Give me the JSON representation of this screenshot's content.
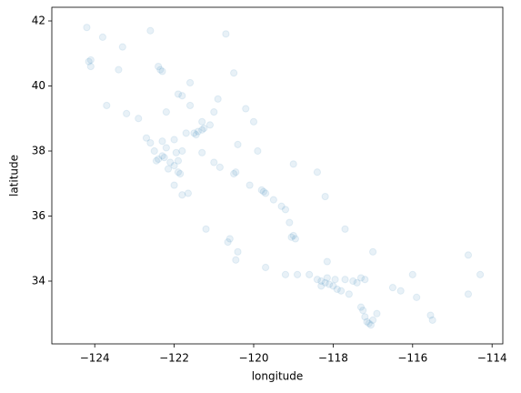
{
  "chart_data": {
    "type": "scatter",
    "x_label": "longitude",
    "y_label": "latitude",
    "color": "#1f77b4",
    "alpha": 0.1,
    "xlim": [
      -125.08,
      -113.73
    ],
    "ylim": [
      32.07,
      42.42
    ],
    "xticks": [
      {
        "value": -124,
        "label": "−124"
      },
      {
        "value": -122,
        "label": "−122"
      },
      {
        "value": -120,
        "label": "−120"
      },
      {
        "value": -118,
        "label": "−118"
      },
      {
        "value": -116,
        "label": "−116"
      },
      {
        "value": -114,
        "label": "−114"
      }
    ],
    "yticks": [
      34,
      36,
      38,
      40,
      42
    ],
    "x": [
      -124.2,
      -124.1,
      -124.15,
      -124.1,
      -123.8,
      -123.3,
      -122.6,
      -122.4,
      -122.35,
      -122.3,
      -121.9,
      -121.8,
      -121.6,
      -122.2,
      -123.2,
      -123.7,
      -121.6,
      -120.5,
      -120.7,
      -120.2,
      -121.4,
      -121.3,
      -121.5,
      -121.25,
      -121.1,
      -121.45,
      -121.3,
      -121.0,
      -121.7,
      -122.0,
      -122.4,
      -122.3,
      -122.25,
      -122.1,
      -122.0,
      -121.9,
      -121.85,
      -122.15,
      -122.45,
      -122.5,
      -122.7,
      -122.6,
      -122.3,
      -122.2,
      -121.95,
      -121.8,
      -122.0,
      -121.8,
      -121.65,
      -121.9,
      -121.3,
      -121.0,
      -120.85,
      -120.5,
      -120.45,
      -120.1,
      -119.8,
      -119.75,
      -119.7,
      -119.5,
      -119.3,
      -119.2,
      -119.1,
      -119.0,
      -119.05,
      -118.95,
      -120.6,
      -120.65,
      -120.45,
      -119.7,
      -119.2,
      -118.9,
      -118.6,
      -118.4,
      -118.3,
      -118.2,
      -118.1,
      -118.0,
      -117.9,
      -117.8,
      -118.3,
      -118.15,
      -117.95,
      -117.7,
      -117.5,
      -117.3,
      -117.2,
      -117.4,
      -117.6,
      -118.15,
      -117.15,
      -117.1,
      -117.05,
      -117.0,
      -117.2,
      -117.25,
      -117.3,
      -116.9,
      -116.5,
      -116.3,
      -115.5,
      -115.55,
      -114.6,
      -114.6,
      -114.3,
      -116.0,
      -115.9,
      -117.0,
      -117.7,
      -118.2,
      -118.4,
      -119.0,
      -119.9,
      -120.4,
      -120.9,
      -120.0,
      -122.9,
      -123.4,
      -121.2,
      -120.4
    ],
    "y": [
      41.8,
      40.8,
      40.75,
      40.6,
      41.5,
      41.2,
      41.7,
      40.6,
      40.5,
      40.45,
      39.75,
      39.7,
      39.4,
      39.2,
      39.15,
      39.4,
      40.1,
      40.4,
      41.6,
      39.3,
      38.6,
      38.65,
      38.55,
      38.7,
      38.8,
      38.5,
      38.9,
      39.2,
      38.55,
      38.35,
      37.75,
      37.85,
      37.8,
      37.65,
      37.55,
      37.35,
      37.3,
      37.45,
      37.7,
      38.0,
      38.4,
      38.25,
      38.3,
      38.1,
      37.95,
      38.0,
      36.95,
      36.65,
      36.7,
      37.7,
      37.95,
      37.65,
      37.5,
      37.3,
      37.35,
      36.95,
      36.8,
      36.75,
      36.7,
      36.5,
      36.3,
      36.2,
      35.8,
      35.4,
      35.35,
      35.3,
      35.3,
      35.2,
      34.65,
      34.42,
      34.2,
      34.2,
      34.2,
      34.05,
      34.0,
      33.95,
      33.9,
      33.85,
      33.75,
      33.7,
      33.85,
      34.1,
      34.05,
      34.05,
      34.0,
      34.1,
      34.05,
      33.95,
      33.6,
      34.6,
      32.75,
      32.7,
      32.65,
      32.8,
      32.9,
      33.1,
      33.2,
      33.0,
      33.8,
      33.7,
      32.8,
      32.95,
      34.8,
      33.6,
      34.2,
      34.2,
      33.5,
      34.9,
      35.6,
      36.6,
      37.35,
      37.6,
      38.0,
      38.2,
      39.6,
      38.9,
      39.0,
      40.5,
      35.6,
      34.9
    ]
  }
}
